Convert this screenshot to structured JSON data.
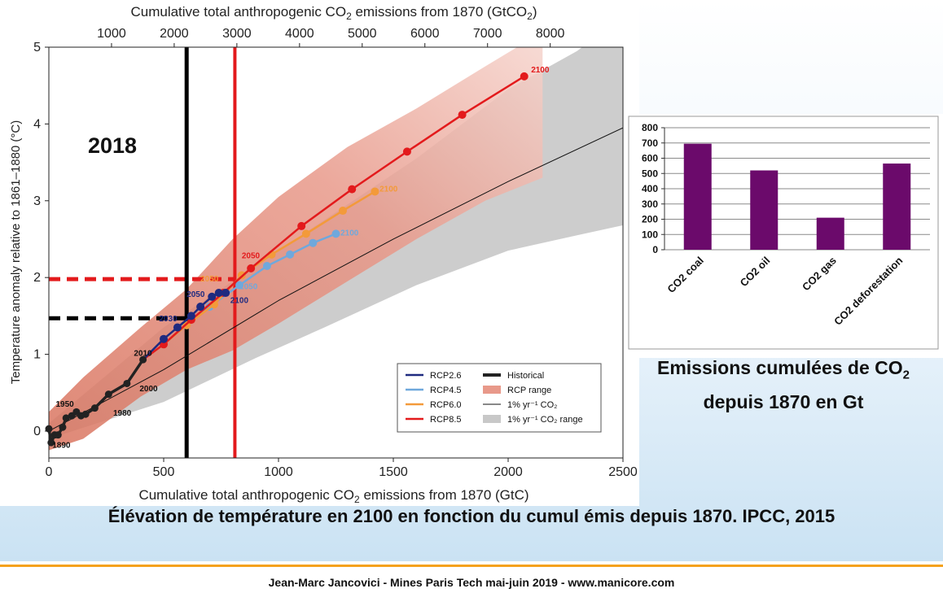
{
  "colors": {
    "rcp26": "#1f2a80",
    "rcp45": "#6fa8dc",
    "rcp60": "#f39a3a",
    "rcp85": "#e31a1c",
    "historical": "#222222",
    "rcp_range": "#e8998a",
    "pct_range": "#c8c8c8",
    "bar": "#6b0a6b",
    "footer_line": "#f4a21e"
  },
  "main_caption": "Élévation de température en 2100 en fonction du cumul émis depuis 1870. IPCC, 2015",
  "side_caption": {
    "line1_pre": "Emissions cumulées de CO",
    "line1_sub": "2",
    "line2": "depuis 1870 en Gt"
  },
  "footer": "Jean-Marc Jancovici - Mines Paris Tech mai-juin 2019 - www.manicore.com",
  "chart_data": [
    {
      "type": "line",
      "top_axis_label": {
        "pre": "Cumulative total anthropogenic CO",
        "sub": "2",
        "post": " emissions from 1870 (GtCO",
        "sub2": "2",
        "post2": ")"
      },
      "top_ticks": [
        "1000",
        "2000",
        "3000",
        "4000",
        "5000",
        "6000",
        "7000",
        "8000"
      ],
      "top_tick_values_gtc": [
        272.9,
        545.8,
        818.7,
        1091.6,
        1364.5,
        1637.4,
        1910.3,
        2183.2
      ],
      "xlabel": {
        "pre": "Cumulative total anthropogenic CO",
        "sub": "2",
        "post": " emissions from 1870 (GtC)"
      },
      "ylabel": "Temperature anomaly relative to 1861–1880 (°C)",
      "xlim": [
        0,
        2500
      ],
      "ylim": [
        -0.35,
        5
      ],
      "x_ticks": [
        "0",
        "500",
        "1000",
        "1500",
        "2000",
        "2500"
      ],
      "x_tick_values": [
        0,
        500,
        1000,
        1500,
        2000,
        2500
      ],
      "y_ticks": [
        "0",
        "1",
        "2",
        "3",
        "4",
        "5"
      ],
      "y_tick_values": [
        0,
        1,
        2,
        3,
        4,
        5
      ],
      "year_annotation": "2018",
      "markers": {
        "black_vline_x": 600,
        "red_vline_x": 810,
        "black_hline_y": 1.47,
        "red_hline_y": 1.98
      },
      "series": [
        {
          "name": "Historical",
          "key": "historical",
          "points": [
            [
              0,
              0.03
            ],
            [
              10,
              -0.15
            ],
            [
              25,
              -0.05
            ],
            [
              40,
              -0.05
            ],
            [
              60,
              0.05
            ],
            [
              75,
              0.17
            ],
            [
              100,
              0.2
            ],
            [
              120,
              0.25
            ],
            [
              140,
              0.2
            ],
            [
              160,
              0.22
            ],
            [
              200,
              0.3
            ],
            [
              260,
              0.48
            ],
            [
              340,
              0.62
            ],
            [
              410,
              0.93
            ]
          ],
          "labels": [
            {
              "text": "1890",
              "x": 15,
              "y": -0.22
            },
            {
              "text": "1950",
              "x": 30,
              "y": 0.32
            },
            {
              "text": "1980",
              "x": 280,
              "y": 0.2
            },
            {
              "text": "2000",
              "x": 395,
              "y": 0.52
            },
            {
              "text": "2010",
              "x": 370,
              "y": 0.98
            }
          ]
        },
        {
          "name": "RCP2.6",
          "key": "rcp26",
          "points": [
            [
              410,
              0.93
            ],
            [
              500,
              1.2
            ],
            [
              560,
              1.35
            ],
            [
              620,
              1.5
            ],
            [
              660,
              1.62
            ],
            [
              710,
              1.75
            ],
            [
              740,
              1.8
            ],
            [
              770,
              1.8
            ]
          ],
          "labels": [
            {
              "text": "2030",
              "x": 480,
              "y": 1.43
            },
            {
              "text": "2050",
              "x": 600,
              "y": 1.75
            },
            {
              "text": "2100",
              "x": 790,
              "y": 1.67
            }
          ]
        },
        {
          "name": "RCP4.5",
          "key": "rcp45",
          "points": [
            [
              410,
              0.93
            ],
            [
              500,
              1.13
            ],
            [
              600,
              1.38
            ],
            [
              700,
              1.62
            ],
            [
              830,
              1.9
            ],
            [
              950,
              2.15
            ],
            [
              1050,
              2.3
            ],
            [
              1150,
              2.45
            ],
            [
              1250,
              2.57
            ]
          ],
          "labels": [
            {
              "text": "2050",
              "x": 830,
              "y": 1.85
            },
            {
              "text": "2100",
              "x": 1270,
              "y": 2.55
            }
          ]
        },
        {
          "name": "RCP6.0",
          "key": "rcp60",
          "points": [
            [
              410,
              0.93
            ],
            [
              500,
              1.13
            ],
            [
              600,
              1.38
            ],
            [
              720,
              1.65
            ],
            [
              840,
              2.03
            ],
            [
              970,
              2.3
            ],
            [
              1120,
              2.57
            ],
            [
              1280,
              2.87
            ],
            [
              1420,
              3.12
            ]
          ],
          "labels": [
            {
              "text": "2050",
              "x": 660,
              "y": 1.95
            },
            {
              "text": "2100",
              "x": 1440,
              "y": 3.12
            }
          ]
        },
        {
          "name": "RCP8.5",
          "key": "rcp85",
          "points": [
            [
              410,
              0.93
            ],
            [
              500,
              1.13
            ],
            [
              620,
              1.45
            ],
            [
              760,
              1.8
            ],
            [
              880,
              2.12
            ],
            [
              1100,
              2.67
            ],
            [
              1320,
              3.15
            ],
            [
              1560,
              3.64
            ],
            [
              1800,
              4.12
            ],
            [
              2070,
              4.62
            ]
          ],
          "labels": [
            {
              "text": "2050",
              "x": 840,
              "y": 2.25
            },
            {
              "text": "2100",
              "x": 2100,
              "y": 4.67
            }
          ]
        },
        {
          "name": "1% yr⁻¹ CO₂",
          "key": "pct",
          "points": [
            [
              0,
              0
            ],
            [
              500,
              0.8
            ],
            [
              1000,
              1.7
            ],
            [
              1500,
              2.5
            ],
            [
              2000,
              3.25
            ],
            [
              2500,
              3.95
            ]
          ]
        }
      ],
      "legend": [
        {
          "label": "RCP2.6",
          "key": "rcp26",
          "kind": "line"
        },
        {
          "label": "RCP4.5",
          "key": "rcp45",
          "kind": "line"
        },
        {
          "label": "RCP6.0",
          "key": "rcp60",
          "kind": "line"
        },
        {
          "label": "RCP8.5",
          "key": "rcp85",
          "kind": "line"
        },
        {
          "label": "Historical",
          "key": "historical",
          "kind": "thick"
        },
        {
          "label": "RCP range",
          "key": "rcp_range",
          "kind": "patch"
        },
        {
          "label": "1% yr⁻¹ CO₂",
          "key": "pct",
          "kind": "thin"
        },
        {
          "label": "1% yr⁻¹ CO₂ range",
          "key": "pct_range",
          "kind": "patch"
        }
      ],
      "legend_placement": "bottom-right",
      "grid": false
    },
    {
      "type": "bar",
      "categories": [
        "CO2 coal",
        "CO2 oil",
        "CO2 gas",
        "CO2 deforestation"
      ],
      "values": [
        695,
        520,
        210,
        565
      ],
      "ylim": [
        0,
        800
      ],
      "y_ticks": [
        "0",
        "100",
        "200",
        "300",
        "400",
        "500",
        "600",
        "700",
        "800"
      ],
      "y_tick_values": [
        0,
        100,
        200,
        300,
        400,
        500,
        600,
        700,
        800
      ],
      "grid": true
    }
  ]
}
